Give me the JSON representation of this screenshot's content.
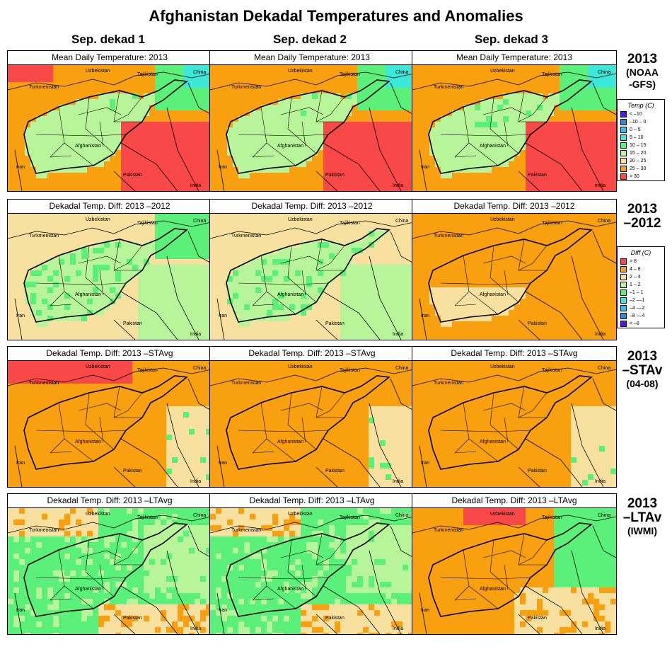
{
  "title": "Afghanistan Dekadal Temperatures and Anomalies",
  "columns": [
    "Sep. dekad 1",
    "Sep. dekad 2",
    "Sep. dekad 3"
  ],
  "rows": [
    {
      "label_line1": "2013",
      "label_line2": "(NOAA",
      "label_line3": "-GFS)",
      "panel_title": "Mean Daily Temperature: 2013",
      "kind": "temp"
    },
    {
      "label_line1": "2013",
      "label_line2": "–2012",
      "label_line3": "",
      "panel_title": "Dekadal Temp. Diff: 2013 –2012",
      "kind": "diff2012"
    },
    {
      "label_line1": "2013",
      "label_line2": "–STAv",
      "label_line3": "(04-08)",
      "panel_title": "Dekadal Temp. Diff: 2013 –STAvg",
      "kind": "stavg"
    },
    {
      "label_line1": "2013",
      "label_line2": "–LTAv",
      "label_line3": "(IWMI)",
      "panel_title": "Dekadal Temp. Diff: 2013 –LTAvg",
      "kind": "ltavg"
    }
  ],
  "legend_temp": {
    "title": "Temp (C)",
    "items": [
      {
        "label": "< –10",
        "color": "#4b1fd8"
      },
      {
        "label": "–10 –  0",
        "color": "#2b8ae0"
      },
      {
        "label": "0 –  5",
        "color": "#3fb7f0"
      },
      {
        "label": "5 – 10",
        "color": "#3ee8d8"
      },
      {
        "label": "10 – 15",
        "color": "#5af07a"
      },
      {
        "label": "15 – 20",
        "color": "#b8f59a"
      },
      {
        "label": "20 – 25",
        "color": "#f8e0a0"
      },
      {
        "label": "25 – 30",
        "color": "#f8a010"
      },
      {
        "label": "> 30",
        "color": "#f84848"
      }
    ]
  },
  "legend_diff": {
    "title": "Diff (C)",
    "items": [
      {
        "label": "> 8",
        "color": "#f84848"
      },
      {
        "label": "4 – 8",
        "color": "#f8a010"
      },
      {
        "label": "2 – 4",
        "color": "#f8e0a0"
      },
      {
        "label": "1 – 2",
        "color": "#b8f59a"
      },
      {
        "label": "–1 – 1",
        "color": "#5af07a"
      },
      {
        "label": "–2 ––1",
        "color": "#3ee8d8"
      },
      {
        "label": "–4 ––2",
        "color": "#3fb7f0"
      },
      {
        "label": "–8 ––4",
        "color": "#2b8ae0"
      },
      {
        "label": "< –8",
        "color": "#4b1fd8"
      }
    ]
  },
  "map_labels": {
    "uzbekistan": "Uzbekistan",
    "tajikistan": "Tajikistan",
    "china": "China",
    "turkmenistan": "Turkmenistan",
    "afghanistan": "Afghanistan",
    "iran": "Iran",
    "pakistan": "Pakistan",
    "india": "India"
  },
  "colors": {
    "hot": "#f84848",
    "orange": "#f8a010",
    "tan": "#f8e0a0",
    "lightgreen": "#b8f59a",
    "green": "#5af07a",
    "cyan": "#3ee8d8",
    "lightblue": "#3fb7f0",
    "blue": "#2b8ae0",
    "purple": "#4b1fd8"
  }
}
